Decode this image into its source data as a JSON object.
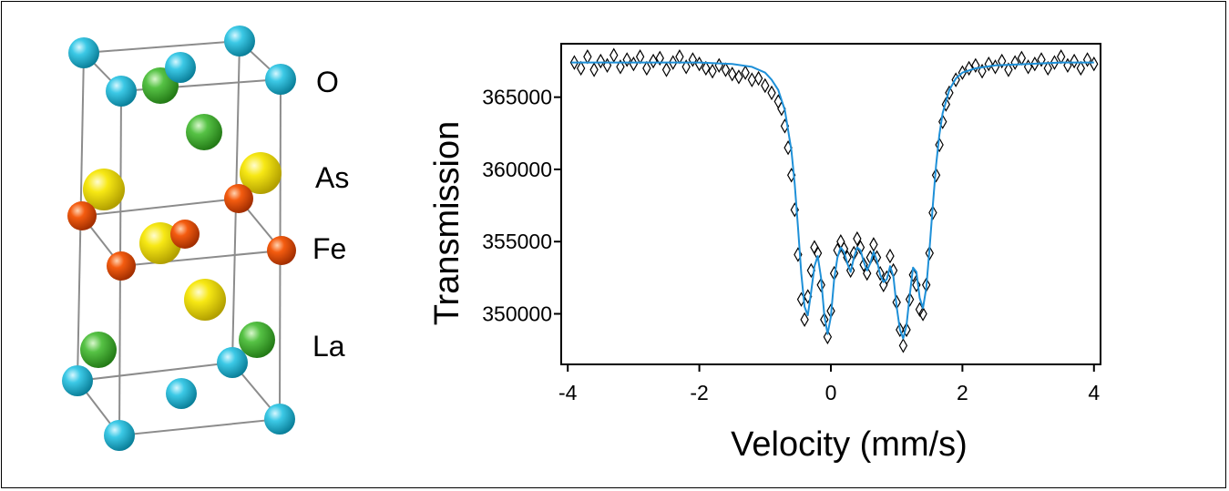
{
  "structure": {
    "legend": [
      {
        "symbol": "O",
        "color": "#22b8d6"
      },
      {
        "symbol": "As",
        "color": "#f2e000"
      },
      {
        "symbol": "Fe",
        "color": "#f25500"
      },
      {
        "symbol": "La",
        "color": "#48b83a"
      }
    ]
  },
  "chart_data": {
    "type": "scatter",
    "title": "",
    "xlabel": "Velocity (mm/s)",
    "ylabel": "Transmission",
    "xlim": [
      -4.1,
      4.1
    ],
    "ylim": [
      346500,
      368700
    ],
    "xticks": [
      -4,
      -2,
      0,
      2,
      4
    ],
    "yticks": [
      350000,
      355000,
      360000,
      365000
    ],
    "grid": false,
    "series": [
      {
        "kind": "data",
        "marker": "diamond",
        "color": "#000000",
        "x": [
          -3.9,
          -3.8,
          -3.7,
          -3.6,
          -3.5,
          -3.4,
          -3.3,
          -3.2,
          -3.1,
          -3.0,
          -2.9,
          -2.8,
          -2.7,
          -2.6,
          -2.5,
          -2.4,
          -2.3,
          -2.2,
          -2.1,
          -2.0,
          -1.9,
          -1.8,
          -1.7,
          -1.6,
          -1.5,
          -1.4,
          -1.3,
          -1.2,
          -1.1,
          -1.0,
          -0.9,
          -0.8,
          -0.75,
          -0.7,
          -0.65,
          -0.6,
          -0.55,
          -0.5,
          -0.45,
          -0.4,
          -0.35,
          -0.3,
          -0.25,
          -0.2,
          -0.15,
          -0.1,
          -0.05,
          0.0,
          0.05,
          0.1,
          0.15,
          0.2,
          0.25,
          0.3,
          0.35,
          0.4,
          0.45,
          0.5,
          0.55,
          0.6,
          0.65,
          0.7,
          0.75,
          0.8,
          0.85,
          0.9,
          0.95,
          1.0,
          1.05,
          1.1,
          1.15,
          1.2,
          1.25,
          1.3,
          1.35,
          1.4,
          1.45,
          1.5,
          1.55,
          1.6,
          1.65,
          1.7,
          1.75,
          1.8,
          1.9,
          2.0,
          2.1,
          2.2,
          2.3,
          2.4,
          2.5,
          2.6,
          2.7,
          2.8,
          2.9,
          3.0,
          3.1,
          3.2,
          3.3,
          3.4,
          3.5,
          3.6,
          3.7,
          3.8,
          3.9,
          4.0
        ],
        "y": [
          367400,
          367000,
          367800,
          366900,
          367500,
          367200,
          367900,
          367100,
          367600,
          367300,
          367800,
          367000,
          367500,
          367700,
          366900,
          367400,
          367800,
          367100,
          367600,
          367300,
          367000,
          366800,
          367200,
          366900,
          366600,
          366400,
          366700,
          366200,
          366300,
          365800,
          365300,
          364700,
          364200,
          363000,
          361500,
          359600,
          357200,
          354100,
          351000,
          349600,
          351200,
          353000,
          354600,
          354200,
          352000,
          349600,
          348400,
          350200,
          352800,
          354400,
          355000,
          354500,
          353900,
          353000,
          354200,
          355200,
          354600,
          353400,
          352800,
          353900,
          354800,
          353900,
          352800,
          352000,
          352500,
          354000,
          353000,
          350800,
          348900,
          347800,
          348900,
          351000,
          352700,
          352000,
          350300,
          350000,
          352000,
          354200,
          357000,
          359600,
          361700,
          363300,
          364500,
          365300,
          366200,
          366700,
          367000,
          367200,
          366800,
          367300,
          367100,
          367500,
          366900,
          367400,
          367700,
          367100,
          367300,
          367600,
          367000,
          367400,
          367800,
          367200,
          367500,
          367000,
          367600,
          367300
        ]
      },
      {
        "kind": "fit",
        "color": "#1e90d8",
        "x": [
          -3.95,
          -3.5,
          -3.0,
          -2.5,
          -2.0,
          -1.5,
          -1.2,
          -1.0,
          -0.9,
          -0.8,
          -0.7,
          -0.6,
          -0.55,
          -0.5,
          -0.45,
          -0.4,
          -0.35,
          -0.3,
          -0.25,
          -0.2,
          -0.15,
          -0.1,
          -0.05,
          0.0,
          0.05,
          0.1,
          0.15,
          0.2,
          0.25,
          0.3,
          0.35,
          0.4,
          0.45,
          0.5,
          0.55,
          0.6,
          0.65,
          0.7,
          0.75,
          0.8,
          0.85,
          0.9,
          0.95,
          1.0,
          1.05,
          1.1,
          1.15,
          1.2,
          1.25,
          1.3,
          1.35,
          1.4,
          1.45,
          1.5,
          1.55,
          1.6,
          1.65,
          1.7,
          1.8,
          1.9,
          2.0,
          2.2,
          2.5,
          3.0,
          3.5,
          4.0
        ],
        "y": [
          367400,
          367400,
          367400,
          367400,
          367400,
          367300,
          367100,
          366700,
          366200,
          365500,
          364100,
          361300,
          359000,
          356000,
          352800,
          350500,
          349900,
          351500,
          353300,
          354000,
          352500,
          349900,
          348600,
          349800,
          352400,
          353900,
          354600,
          354300,
          353500,
          352900,
          353900,
          354600,
          354400,
          353600,
          353000,
          353500,
          354300,
          353700,
          352700,
          352200,
          352400,
          353300,
          352600,
          350500,
          348900,
          348300,
          349200,
          351300,
          353200,
          352900,
          351100,
          350400,
          351800,
          354500,
          357500,
          360300,
          362400,
          363900,
          365500,
          366300,
          366700,
          367000,
          367200,
          367300,
          367400,
          367400
        ]
      }
    ]
  }
}
